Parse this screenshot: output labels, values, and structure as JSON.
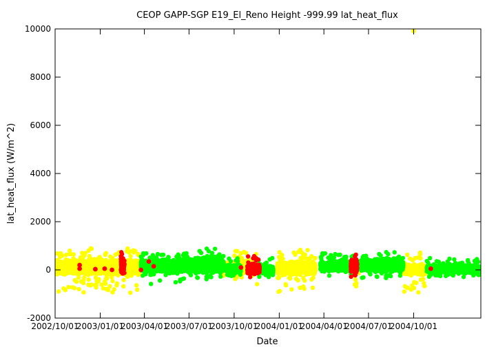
{
  "chart_data": {
    "type": "scatter",
    "title": "CEOP GAPP-SGP E19_El_Reno Height -999.99 lat_heat_flux",
    "xlabel": "Date",
    "ylabel": "lat_heat_flux (W/m^2)",
    "ylim": [
      -2000,
      10000
    ],
    "yticks": [
      -2000,
      0,
      2000,
      4000,
      6000,
      8000,
      10000
    ],
    "xlim": [
      "2002-10-01",
      "2005-02-15"
    ],
    "xticks": [
      {
        "date": "2002-10-01",
        "label": "2002/10/01"
      },
      {
        "date": "2003-01-01",
        "label": "2003/01/01"
      },
      {
        "date": "2003-04-01",
        "label": "2003/04/01"
      },
      {
        "date": "2003-07-01",
        "label": "2003/07/01"
      },
      {
        "date": "2003-10-01",
        "label": "2003/10/01"
      },
      {
        "date": "2004-01-01",
        "label": "2004/01/01"
      },
      {
        "date": "2004-04-01",
        "label": "2004/04/01"
      },
      {
        "date": "2004-07-01",
        "label": "2004/07/01"
      },
      {
        "date": "2004-10-01",
        "label": "2004/10/01"
      }
    ],
    "grid": false,
    "series": [
      {
        "color": "#ffff00",
        "segments": [
          {
            "start": "2002-10-01",
            "end": "2003-03-22",
            "center": 100,
            "spread": 280,
            "outlier_min": -950,
            "outlier_max": 900
          },
          {
            "start": "2003-09-05",
            "end": "2003-09-22",
            "center": 100,
            "spread": 150,
            "outlier_min": -300,
            "outlier_max": 400
          },
          {
            "start": "2003-10-01",
            "end": "2003-11-18",
            "center": 100,
            "spread": 250,
            "outlier_min": -950,
            "outlier_max": 800
          },
          {
            "start": "2003-12-28",
            "end": "2004-03-15",
            "center": 80,
            "spread": 260,
            "outlier_min": -950,
            "outlier_max": 850
          },
          {
            "start": "2004-05-28",
            "end": "2004-06-12",
            "center": 80,
            "spread": 200,
            "outlier_min": -700,
            "outlier_max": 600
          },
          {
            "start": "2004-09-10",
            "end": "2004-10-25",
            "center": 0,
            "spread": 200,
            "outlier_min": -950,
            "outlier_max": 900
          }
        ],
        "points": [
          {
            "x": "2004-10-01",
            "y": 10000
          }
        ]
      },
      {
        "color": "#00ff00",
        "segments": [
          {
            "start": "2003-03-25",
            "end": "2003-06-15",
            "center": 150,
            "spread": 250,
            "outlier_min": -700,
            "outlier_max": 700
          },
          {
            "start": "2003-06-15",
            "end": "2003-09-10",
            "center": 200,
            "spread": 300,
            "outlier_min": -400,
            "outlier_max": 900
          },
          {
            "start": "2003-09-15",
            "end": "2003-10-15",
            "center": 50,
            "spread": 150,
            "outlier_min": -300,
            "outlier_max": 650
          },
          {
            "start": "2003-11-20",
            "end": "2003-12-20",
            "center": 0,
            "spread": 150,
            "outlier_min": -300,
            "outlier_max": 550
          },
          {
            "start": "2004-03-25",
            "end": "2004-06-05",
            "center": 150,
            "spread": 200,
            "outlier_min": -300,
            "outlier_max": 700
          },
          {
            "start": "2004-06-15",
            "end": "2004-09-10",
            "center": 200,
            "spread": 250,
            "outlier_min": -350,
            "outlier_max": 750
          },
          {
            "start": "2004-10-28",
            "end": "2005-02-15",
            "center": 30,
            "spread": 150,
            "outlier_min": -300,
            "outlier_max": 500
          }
        ],
        "points": []
      },
      {
        "color": "#ff0000",
        "segments": [
          {
            "start": "2003-02-12",
            "end": "2003-02-20",
            "center": 150,
            "spread": 350,
            "outlier_min": -500,
            "outlier_max": 750
          },
          {
            "start": "2003-10-28",
            "end": "2003-11-22",
            "center": 50,
            "spread": 200,
            "outlier_min": -450,
            "outlier_max": 650
          },
          {
            "start": "2004-05-26",
            "end": "2004-06-08",
            "center": 150,
            "spread": 300,
            "outlier_min": -300,
            "outlier_max": 650
          }
        ],
        "points": [
          {
            "x": "2002-11-20",
            "y": 200
          },
          {
            "x": "2002-11-20",
            "y": 50
          },
          {
            "x": "2002-12-22",
            "y": 30
          },
          {
            "x": "2003-01-10",
            "y": 50
          },
          {
            "x": "2003-01-25",
            "y": 0
          },
          {
            "x": "2003-03-25",
            "y": 0
          },
          {
            "x": "2003-04-10",
            "y": 350
          },
          {
            "x": "2003-04-20",
            "y": 150
          },
          {
            "x": "2003-10-15",
            "y": 100
          },
          {
            "x": "2004-11-05",
            "y": 50
          }
        ]
      }
    ]
  }
}
